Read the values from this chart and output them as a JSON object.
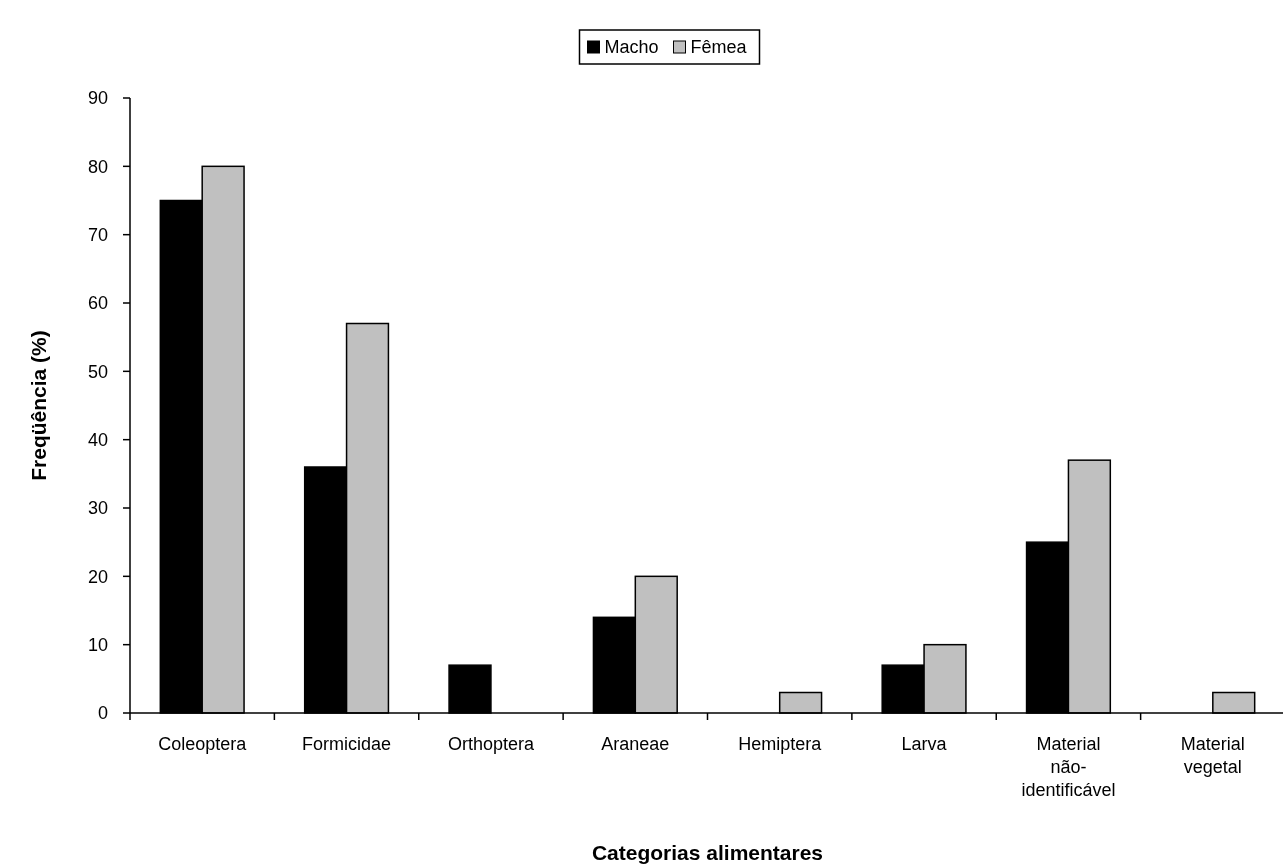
{
  "chart_data": {
    "type": "bar",
    "xlabel": "Categorias alimentares",
    "ylabel": "Freqüência (%)",
    "categories": [
      "Coleoptera",
      "Formicidae",
      "Orthoptera",
      "Araneae",
      "Hemiptera",
      "Larva",
      "Material não-identificável",
      "Material vegetal"
    ],
    "series": [
      {
        "name": "Macho",
        "color": "#000000",
        "values": [
          75,
          36,
          7,
          14,
          0,
          7,
          25,
          0
        ]
      },
      {
        "name": "Fêmea",
        "color": "#c0c0c0",
        "values": [
          80,
          57,
          0,
          20,
          3,
          10,
          37,
          3
        ]
      }
    ],
    "ylim": [
      0,
      90
    ],
    "yticks": [
      0,
      10,
      20,
      30,
      40,
      50,
      60,
      70,
      80,
      90
    ],
    "grid": false,
    "legend": "top"
  }
}
